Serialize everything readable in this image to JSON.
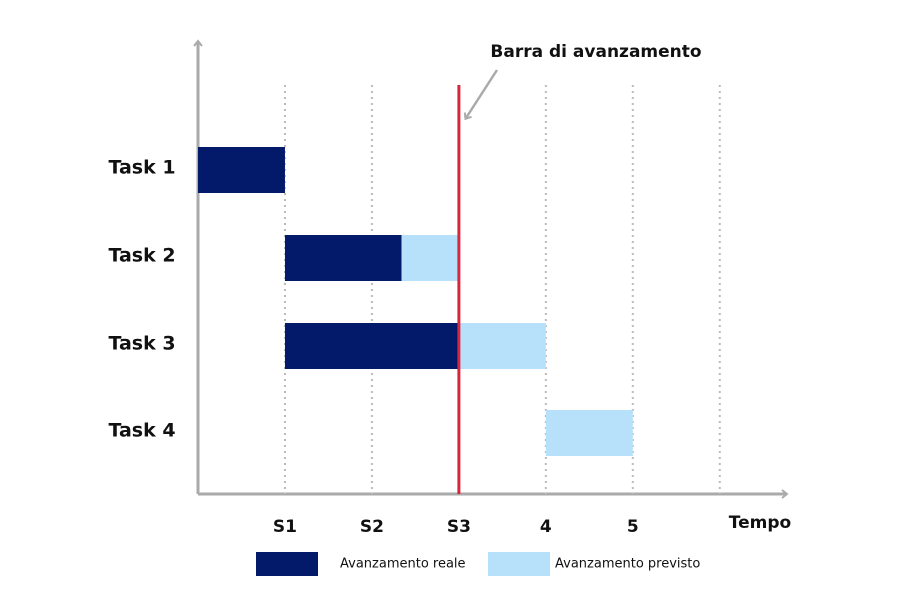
{
  "chart_data": {
    "type": "gantt",
    "categories": [
      "Task 1",
      "Task 2",
      "Task 3",
      "Task 4"
    ],
    "series": [
      {
        "name": "Avanzamento reale",
        "color": "#031a6b",
        "start": [
          0,
          1,
          1,
          null
        ],
        "end": [
          1,
          2.34,
          3,
          null
        ]
      },
      {
        "name": "Avanzamento previsto",
        "color": "#b7e0fb",
        "start": [
          null,
          2.34,
          3,
          4
        ],
        "end": [
          null,
          3,
          4,
          5
        ]
      }
    ],
    "xlim": [
      0,
      6.75
    ],
    "xticks": [
      {
        "value": 1,
        "label": "S1"
      },
      {
        "value": 2,
        "label": "S2"
      },
      {
        "value": 3,
        "label": "S3"
      },
      4,
      5,
      {
        "value": 6,
        "label": null
      }
    ],
    "x_label": "Tempo",
    "grid": true,
    "progress_line": {
      "value": 3,
      "label": "Barra di avanzamento",
      "color": "#d9263f"
    }
  }
}
